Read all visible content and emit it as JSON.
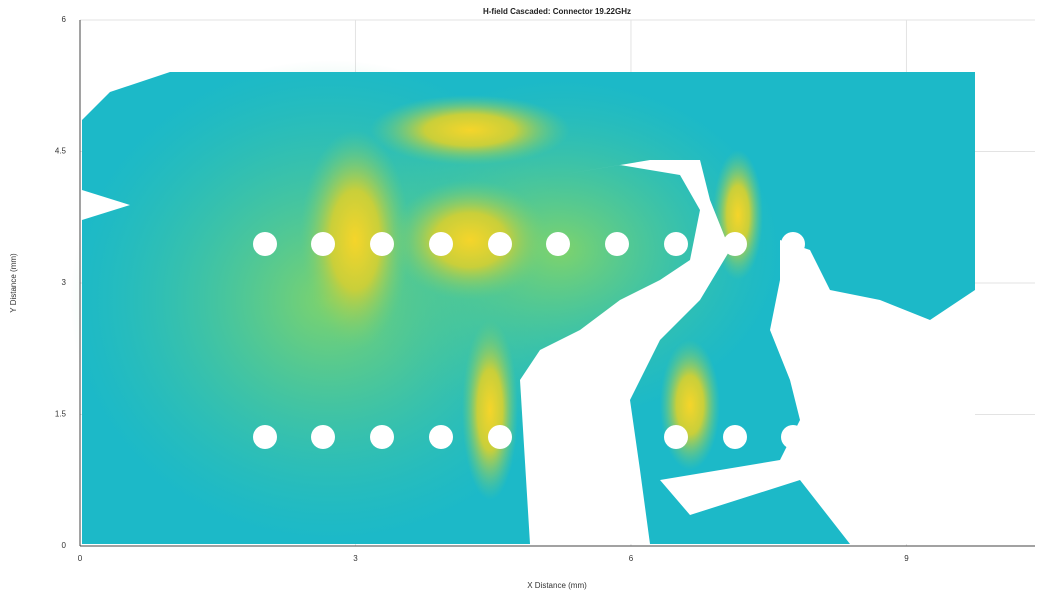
{
  "chart_data": {
    "type": "heatmap",
    "title": "H-field Cascaded: Connector 19.22GHz",
    "xlabel": "X Distance (mm)",
    "ylabel": "Y Distance (mm)",
    "xlim": [
      0,
      10.4
    ],
    "ylim": [
      0,
      6
    ],
    "xticks": [
      0,
      3,
      6,
      9
    ],
    "yticks": [
      0,
      1.5,
      3,
      4.5,
      6
    ],
    "grid": true
  }
}
